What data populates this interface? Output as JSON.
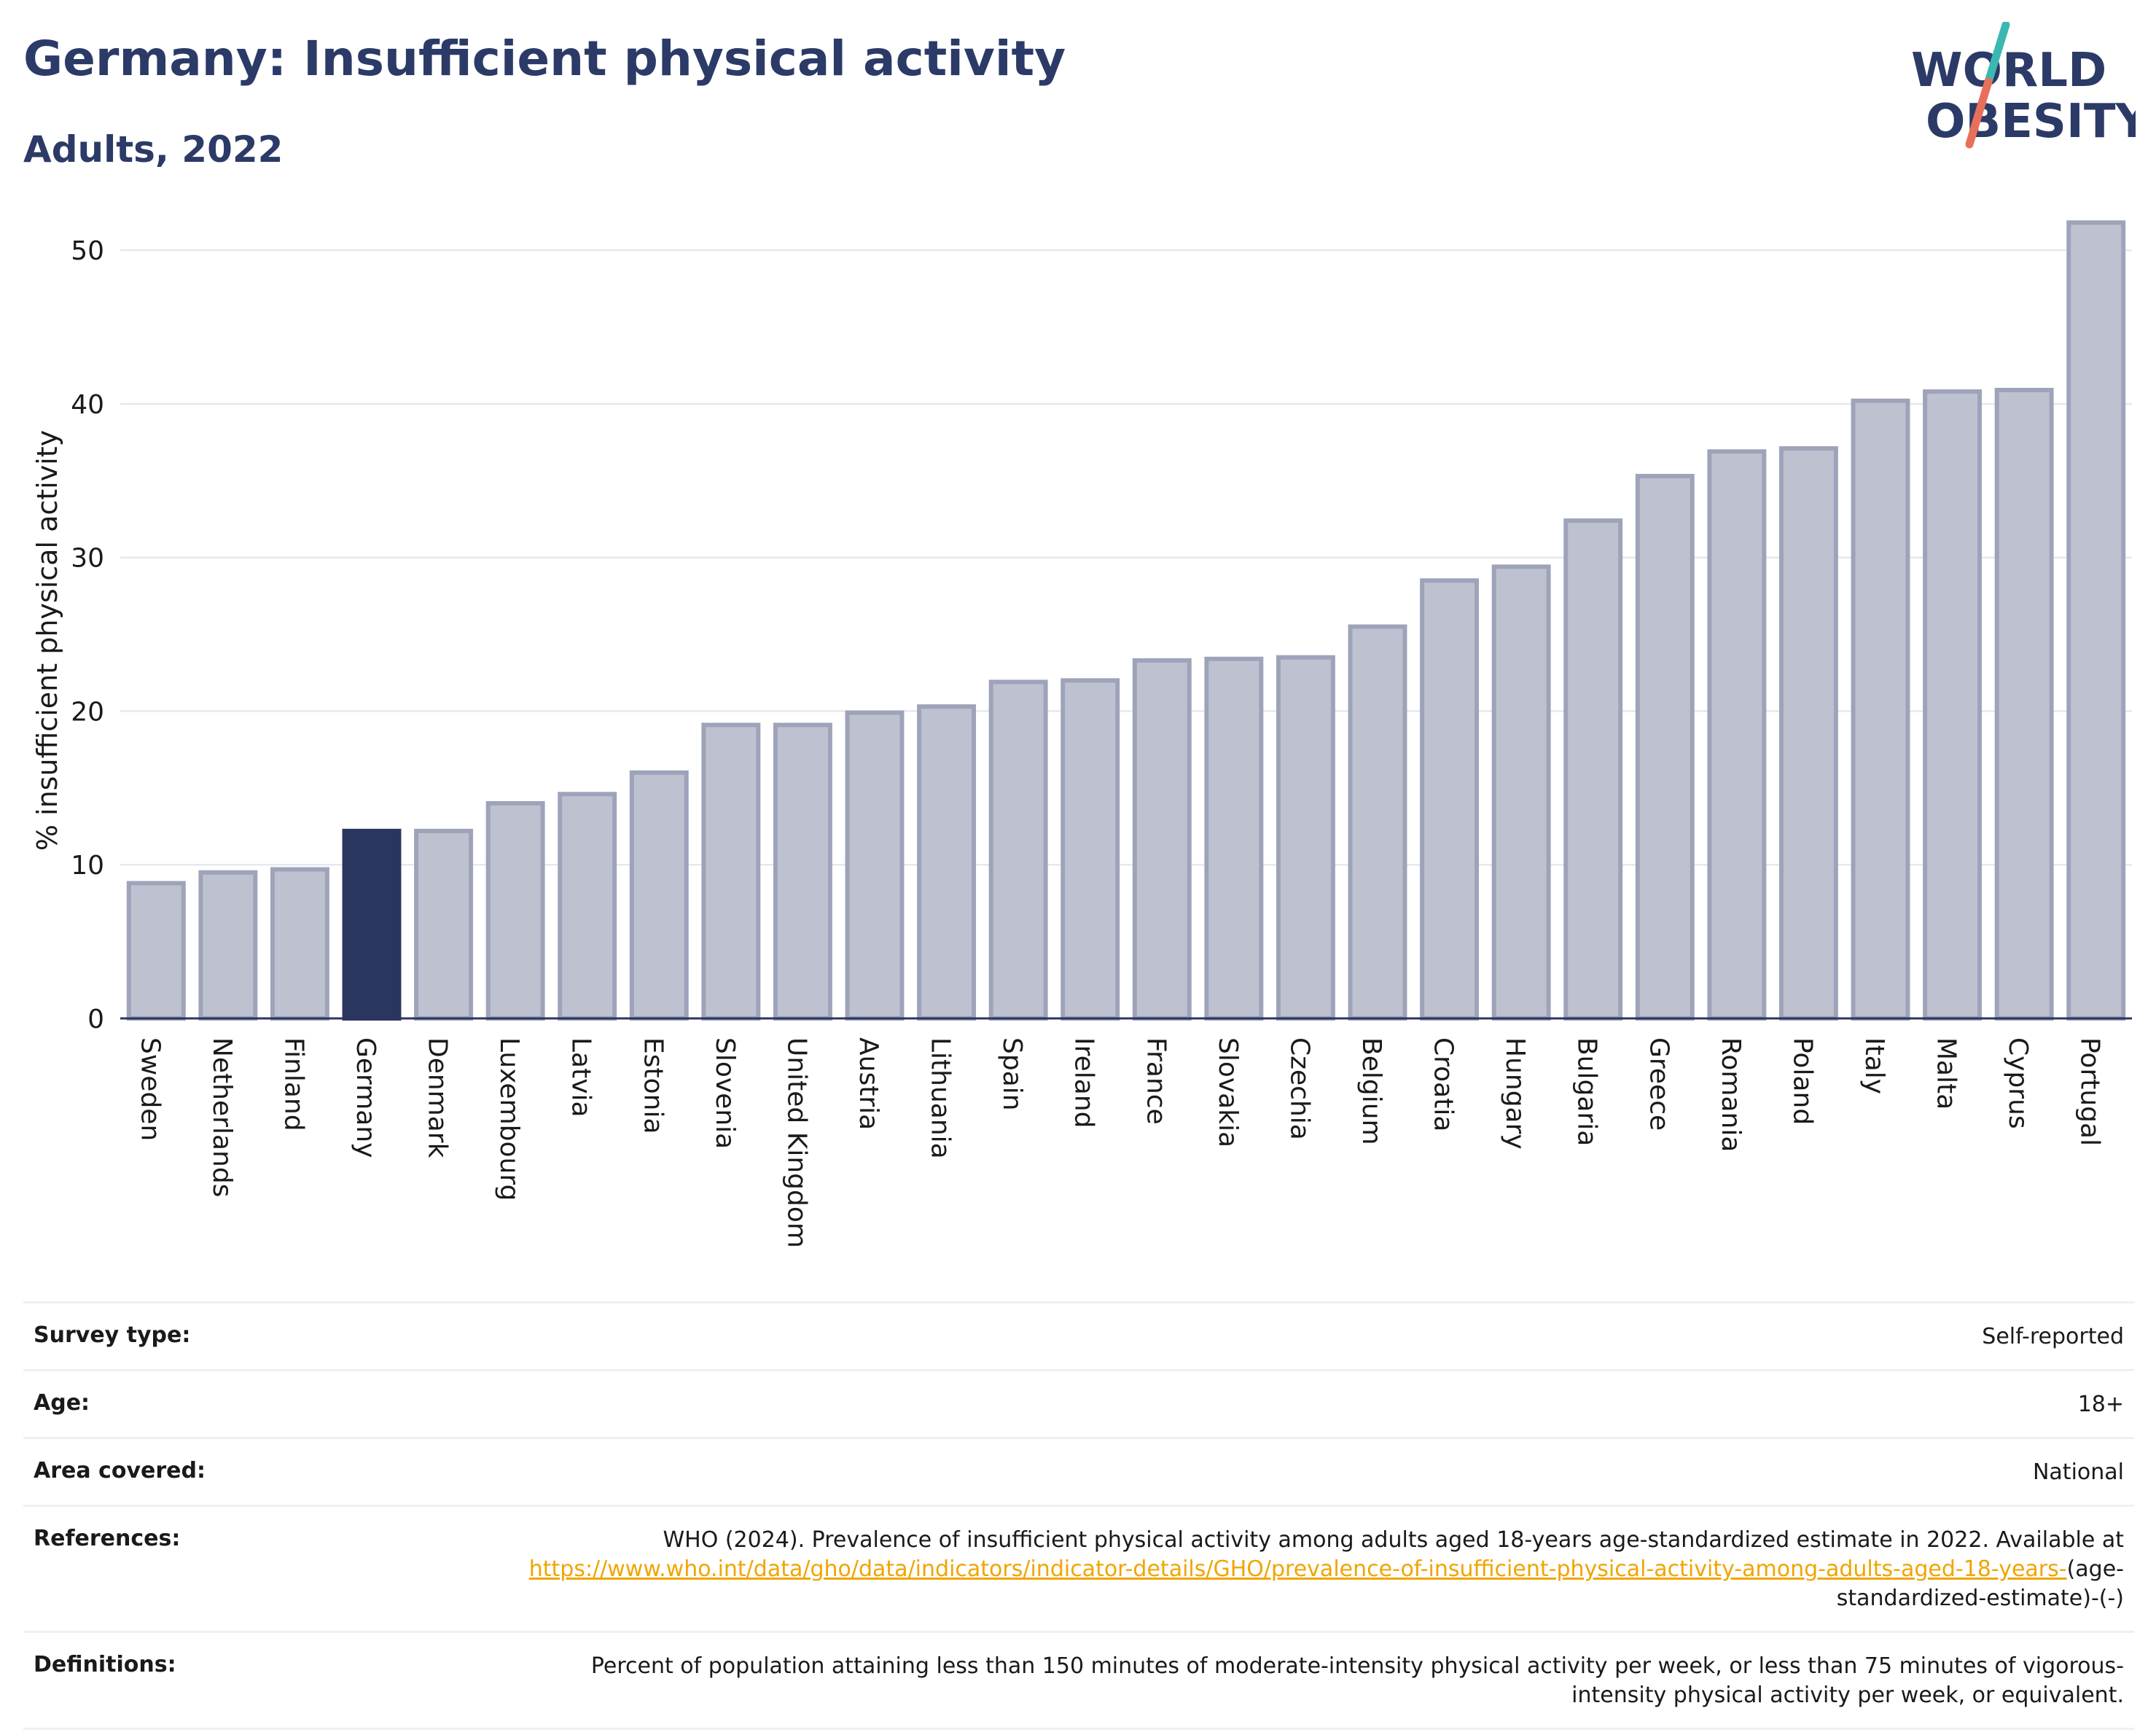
{
  "header": {
    "title": "Germany: Insufficient physical activity",
    "subtitle": "Adults, 2022"
  },
  "logo": {
    "line1": "WORLD",
    "line2": "OBESITY",
    "colors": {
      "text": "#2b3a67",
      "slash_top": "#3cb8b2",
      "slash_bottom": "#e8705a"
    }
  },
  "chart_data": {
    "type": "bar",
    "title": "",
    "xlabel": "",
    "ylabel": "% insufficient physical activity",
    "ylim": [
      0,
      53
    ],
    "yticks": [
      0,
      10,
      20,
      30,
      40,
      50
    ],
    "grid": true,
    "highlight": "Germany",
    "colors": {
      "bar": "#bec2d0",
      "bar_border": "#9ea3ba",
      "highlight": "#2b3660",
      "grid": "#e6e8ef",
      "axis": "#2b3660"
    },
    "categories": [
      "Sweden",
      "Netherlands",
      "Finland",
      "Germany",
      "Denmark",
      "Luxembourg",
      "Latvia",
      "Estonia",
      "Slovenia",
      "United Kingdom",
      "Austria",
      "Lithuania",
      "Spain",
      "Ireland",
      "France",
      "Slovakia",
      "Czechia",
      "Belgium",
      "Croatia",
      "Hungary",
      "Bulgaria",
      "Greece",
      "Romania",
      "Poland",
      "Italy",
      "Malta",
      "Cyprus",
      "Portugal"
    ],
    "values": [
      8.8,
      9.5,
      9.7,
      12.2,
      12.2,
      14.0,
      14.6,
      16.0,
      19.1,
      19.1,
      19.9,
      20.3,
      21.9,
      22.0,
      23.3,
      23.4,
      23.5,
      25.5,
      28.5,
      29.4,
      32.4,
      35.3,
      36.9,
      37.1,
      40.2,
      40.8,
      40.9,
      51.8
    ]
  },
  "meta": {
    "survey_type": {
      "label": "Survey type:",
      "value": "Self-reported"
    },
    "age": {
      "label": "Age:",
      "value": "18+"
    },
    "area": {
      "label": "Area covered:",
      "value": "National"
    },
    "references": {
      "label": "References:",
      "text": "WHO (2024). Prevalence of insufficient physical activity among adults aged 18-years age-standardized estimate in 2022. Available at",
      "link": "https://www.who.int/data/gho/data/indicators/indicator-details/GHO/prevalence-of-insufficient-physical-activity-among-adults-aged-18-years-",
      "suffix": "(age-standardized-estimate)-(-)"
    },
    "definitions": {
      "label": "Definitions:",
      "value": "Percent of population attaining less than 150 minutes of moderate-intensity physical activity per week, or less than 75 minutes of vigorous-intensity physical activity per week, or equivalent."
    }
  }
}
